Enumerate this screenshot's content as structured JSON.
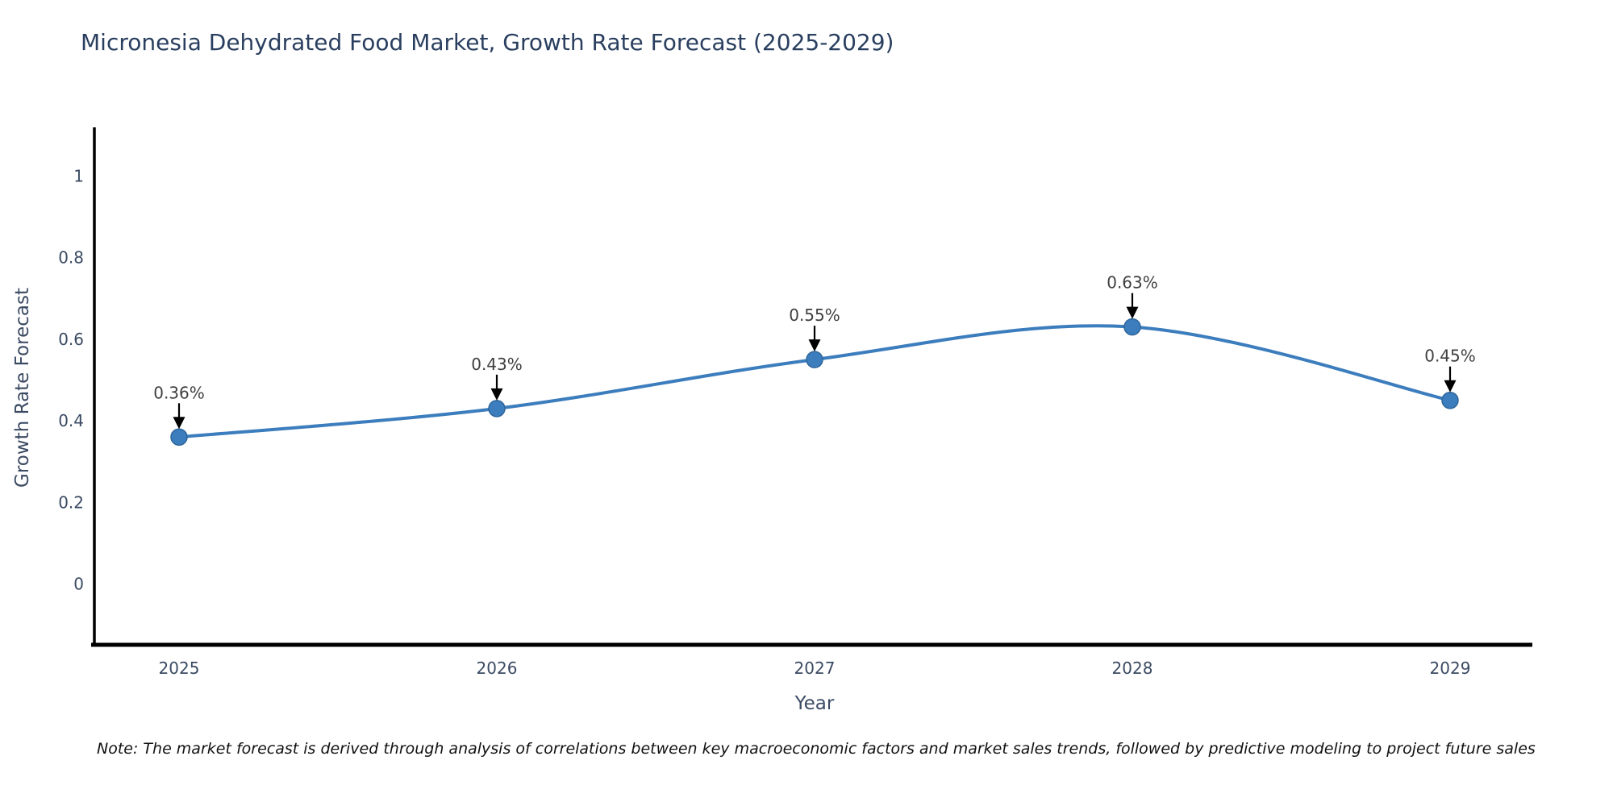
{
  "title": "Micronesia Dehydrated Food Market, Growth Rate Forecast (2025-2029)",
  "note": "Note: The market forecast is derived through analysis of correlations between key macroeconomic factors and market sales trends, followed by predictive modeling to project future sales",
  "chart_data": {
    "type": "line",
    "title": "Micronesia Dehydrated Food Market, Growth Rate Forecast (2025-2029)",
    "xlabel": "Year",
    "ylabel": "Growth Rate Forecast",
    "categories": [
      "2025",
      "2026",
      "2027",
      "2028",
      "2029"
    ],
    "series": [
      {
        "name": "Growth Rate Forecast",
        "values": [
          0.36,
          0.43,
          0.55,
          0.63,
          0.45
        ],
        "point_labels": [
          "0.36%",
          "0.43%",
          "0.55%",
          "0.63%",
          "0.45%"
        ]
      }
    ],
    "yticks": [
      0,
      0.2,
      0.4,
      0.6,
      0.8,
      1
    ],
    "ytick_labels": [
      "0",
      "0.2",
      "0.4",
      "0.6",
      "0.8",
      "1"
    ],
    "ylim": [
      -0.149,
      1.119
    ],
    "grid": false,
    "legend_position": "none",
    "line_shape": "spline",
    "colors": {
      "line": "#3c7dbd",
      "marker_fill": "#3c7dbd",
      "marker_stroke": "#2f669c",
      "axis": "#000000",
      "tick_label": "#3b4a63",
      "annotation_text": "#3f3f3f",
      "annotation_arrow": "#000000",
      "title": "#2a3f5f",
      "background": "#ffffff"
    }
  }
}
